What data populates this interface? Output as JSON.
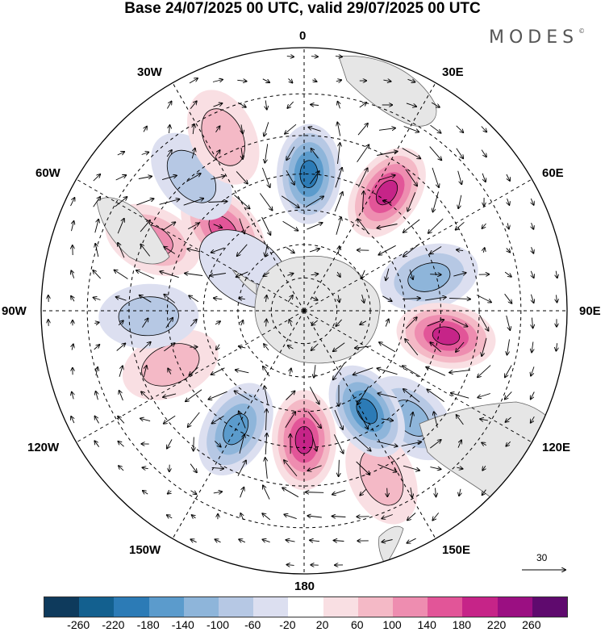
{
  "header": {
    "title": "Base 24/07/2025 00 UTC, valid 29/07/2025 00 UTC",
    "brand": "MODES",
    "brand_mark": "©"
  },
  "map": {
    "projection": "south-polar-stereographic",
    "longitude_labels": [
      "0",
      "30E",
      "60E",
      "90E",
      "120E",
      "150E",
      "180",
      "150W",
      "120W",
      "90W",
      "60W",
      "30W"
    ],
    "vector_scale_label": "30"
  },
  "colorbar": {
    "colors": [
      "#0e3a5c",
      "#13608f",
      "#2c7bb6",
      "#5b9bcc",
      "#8eb5da",
      "#b6c8e4",
      "#dcdff0",
      "#ffffff",
      "#f9dfe3",
      "#f4b9c6",
      "#ee8db0",
      "#e25598",
      "#c62488",
      "#9b0f82",
      "#5f0a6e"
    ],
    "tick_labels": [
      "-260",
      "-220",
      "-180",
      "-140",
      "-100",
      "-60",
      "-20",
      "20",
      "60",
      "100",
      "140",
      "180",
      "220",
      "260"
    ]
  },
  "anomalies": [
    {
      "lon": 2,
      "lat": -50,
      "value": -180
    },
    {
      "lon": 35,
      "lat": -48,
      "value": 210
    },
    {
      "lon": 75,
      "lat": -52,
      "value": -110
    },
    {
      "lon": 100,
      "lat": -48,
      "value": 180
    },
    {
      "lon": 135,
      "lat": -46,
      "value": -100
    },
    {
      "lon": 155,
      "lat": -38,
      "value": 80
    },
    {
      "lon": 148,
      "lat": -55,
      "value": -200
    },
    {
      "lon": 180,
      "lat": -52,
      "value": 210
    },
    {
      "lon": -150,
      "lat": -50,
      "value": -170
    },
    {
      "lon": -112,
      "lat": -48,
      "value": 90
    },
    {
      "lon": -92,
      "lat": -45,
      "value": -80
    },
    {
      "lon": -65,
      "lat": -42,
      "value": 120
    },
    {
      "lon": -45,
      "lat": -56,
      "value": 160
    },
    {
      "lon": -40,
      "lat": -40,
      "value": -60
    },
    {
      "lon": -25,
      "lat": -36,
      "value": 60
    },
    {
      "lon": -55,
      "lat": -68,
      "value": -50
    }
  ]
}
